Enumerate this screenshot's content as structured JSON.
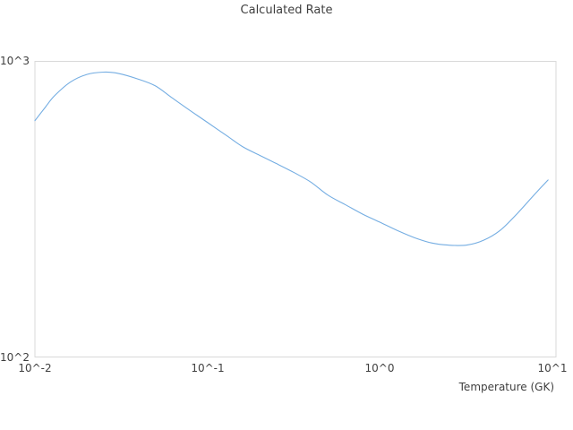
{
  "chart_data": {
    "type": "line",
    "title": "Calculated Rate",
    "xlabel": "Temperature (GK)",
    "ylabel": "",
    "x_scale": "log",
    "y_scale": "log",
    "xlim": [
      0.01,
      10.55
    ],
    "ylim": [
      100,
      1000
    ],
    "grid": false,
    "legend": "none",
    "line_color": "#74ade2",
    "border_color": "#d9d9d9",
    "text_color": "#3f3f3f",
    "x_ticks": [
      {
        "value": 0.01,
        "label": "10^-2"
      },
      {
        "value": 0.1,
        "label": "10^-1"
      },
      {
        "value": 1,
        "label": "10^0"
      },
      {
        "value": 10,
        "label": "10^1"
      }
    ],
    "y_ticks": [
      {
        "value": 100,
        "label": "10^2"
      },
      {
        "value": 1000,
        "label": "10^3"
      }
    ],
    "series": [
      {
        "name": "calculated-rate",
        "x": [
          0.01,
          0.0115,
          0.013,
          0.016,
          0.02,
          0.025,
          0.03,
          0.04,
          0.05,
          0.063,
          0.08,
          0.1,
          0.13,
          0.16,
          0.2,
          0.25,
          0.32,
          0.4,
          0.5,
          0.63,
          0.8,
          1.0,
          1.3,
          1.6,
          2.0,
          2.5,
          3.2,
          4.0,
          5.0,
          6.3,
          8.0,
          9.5
        ],
        "y": [
          630,
          700,
          765,
          850,
          903,
          920,
          912,
          870,
          826,
          750,
          680,
          622,
          560,
          515,
          482,
          452,
          420,
          390,
          353,
          328,
          304,
          286,
          266,
          253,
          243,
          239,
          239,
          248,
          268,
          306,
          357,
          397
        ]
      }
    ]
  }
}
